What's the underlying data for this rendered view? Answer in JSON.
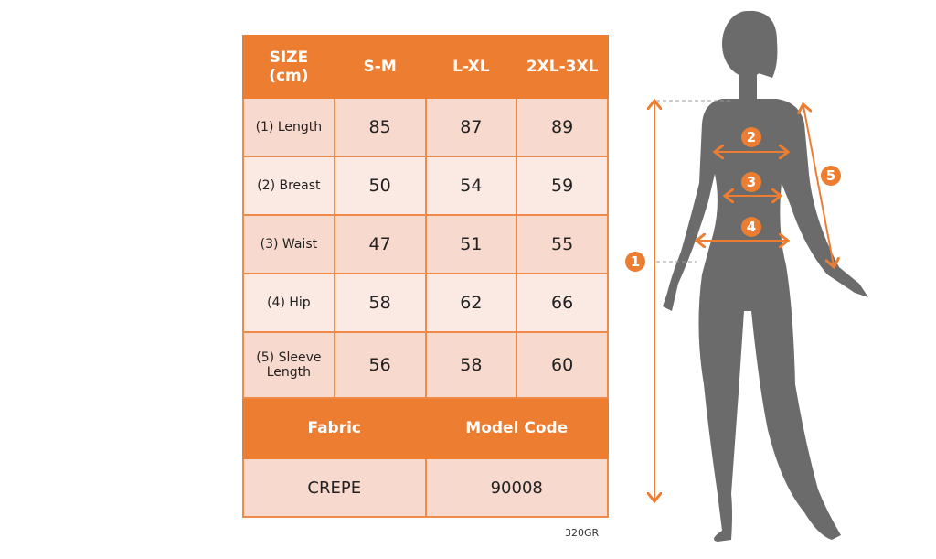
{
  "table": {
    "header": [
      "SIZE (cm)",
      "S-M",
      "L-XL",
      "2XL-3XL"
    ],
    "rows": [
      {
        "label": "(1) Length",
        "values": [
          "85",
          "87",
          "89"
        ]
      },
      {
        "label": "(2) Breast",
        "values": [
          "50",
          "54",
          "59"
        ]
      },
      {
        "label": "(3) Waist",
        "values": [
          "47",
          "51",
          "55"
        ]
      },
      {
        "label": "(4) Hip",
        "values": [
          "58",
          "62",
          "66"
        ]
      },
      {
        "label": "(5) Sleeve Length",
        "values": [
          "56",
          "58",
          "60"
        ]
      }
    ],
    "fabric_label": "Fabric",
    "model_code_label": "Model Code",
    "fabric": "CREPE",
    "model_code": "90008"
  },
  "product_code": "320GR",
  "figure": {
    "markers": [
      "1",
      "2",
      "3",
      "4",
      "5"
    ],
    "accent": "#ed7d31",
    "silhouette_color": "#6b6b6b"
  }
}
